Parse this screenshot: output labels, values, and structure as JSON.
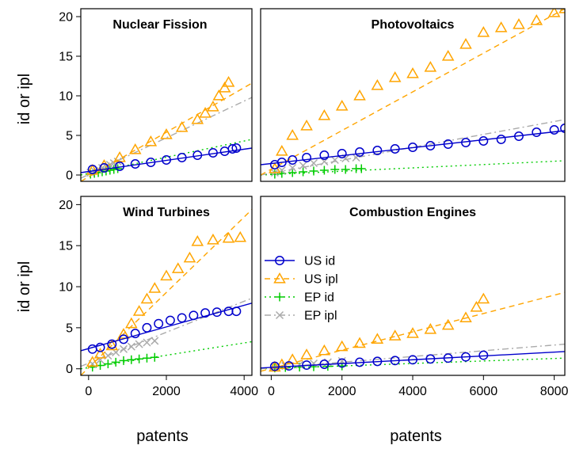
{
  "ylabel": "id or ipl",
  "xlabel": "patents",
  "colors": {
    "US id": "#0000cc",
    "US ipl": "#ffa500",
    "EP id": "#00cc00",
    "EP ipl": "#aaaaaa"
  },
  "legend": {
    "placement": "inside bottom-right panel, left-middle",
    "entries": [
      {
        "label": "US id",
        "color": "#0000cc",
        "marker": "circle",
        "line": "solid"
      },
      {
        "label": "US ipl",
        "color": "#ffa500",
        "marker": "triangle",
        "line": "dashed"
      },
      {
        "label": "EP id",
        "color": "#00cc00",
        "marker": "plus",
        "line": "dotted"
      },
      {
        "label": "EP ipl",
        "color": "#aaaaaa",
        "marker": "cross",
        "line": "dashdot"
      }
    ]
  },
  "chart_data": [
    {
      "type": "scatter",
      "title": "Nuclear Fission",
      "xlim": [
        -200,
        4200
      ],
      "ylim": [
        -0.8,
        21
      ],
      "xticks": [
        0,
        2000,
        4000
      ],
      "yticks": [
        0,
        5,
        10,
        15,
        20
      ],
      "xlabel": "patents",
      "ylabel": "id or ipl",
      "grid": false,
      "series": [
        {
          "name": "US id",
          "points": [
            [
              100,
              0.7
            ],
            [
              400,
              0.9
            ],
            [
              800,
              1.1
            ],
            [
              1200,
              1.4
            ],
            [
              1600,
              1.6
            ],
            [
              2000,
              1.9
            ],
            [
              2400,
              2.2
            ],
            [
              2800,
              2.5
            ],
            [
              3200,
              2.8
            ],
            [
              3500,
              3.0
            ],
            [
              3700,
              3.3
            ],
            [
              3800,
              3.4
            ]
          ],
          "fit": [
            [
              -200,
              0.3
            ],
            [
              4200,
              3.4
            ]
          ]
        },
        {
          "name": "US ipl",
          "points": [
            [
              100,
              0.6
            ],
            [
              400,
              1.2
            ],
            [
              800,
              2.2
            ],
            [
              1200,
              3.2
            ],
            [
              1600,
              4.2
            ],
            [
              2000,
              5.1
            ],
            [
              2400,
              6.0
            ],
            [
              2800,
              7.0
            ],
            [
              3000,
              7.8
            ],
            [
              3200,
              8.6
            ],
            [
              3350,
              10.0
            ],
            [
              3500,
              11.0
            ],
            [
              3600,
              11.7
            ]
          ],
          "fit": [
            [
              -200,
              -0.8
            ],
            [
              4200,
              11.6
            ]
          ]
        },
        {
          "name": "EP id",
          "points": [
            [
              50,
              0.1
            ],
            [
              150,
              0.2
            ],
            [
              250,
              0.3
            ],
            [
              350,
              0.4
            ],
            [
              450,
              0.5
            ],
            [
              550,
              0.6
            ],
            [
              650,
              0.7
            ],
            [
              750,
              0.8
            ]
          ],
          "fit": [
            [
              -200,
              0.0
            ],
            [
              4200,
              4.5
            ]
          ]
        },
        {
          "name": "EP ipl",
          "points": [
            [
              50,
              0.3
            ],
            [
              150,
              0.5
            ],
            [
              250,
              0.7
            ],
            [
              350,
              0.9
            ],
            [
              450,
              1.1
            ],
            [
              550,
              1.3
            ],
            [
              650,
              1.5
            ],
            [
              750,
              1.7
            ]
          ],
          "fit": [
            [
              -200,
              -0.4
            ],
            [
              4200,
              9.8
            ]
          ]
        }
      ]
    },
    {
      "type": "scatter",
      "title": "Photovoltaics",
      "xlim": [
        -300,
        8300
      ],
      "ylim": [
        -0.8,
        21
      ],
      "xticks": [
        0,
        2000,
        4000,
        6000,
        8000
      ],
      "yticks": [
        0,
        5,
        10,
        15,
        20
      ],
      "xlabel": "patents",
      "ylabel": "id or ipl",
      "grid": false,
      "series": [
        {
          "name": "US id",
          "points": [
            [
              100,
              1.3
            ],
            [
              300,
              1.6
            ],
            [
              600,
              1.9
            ],
            [
              1000,
              2.2
            ],
            [
              1500,
              2.5
            ],
            [
              2000,
              2.7
            ],
            [
              2500,
              2.9
            ],
            [
              3000,
              3.1
            ],
            [
              3500,
              3.3
            ],
            [
              4000,
              3.5
            ],
            [
              4500,
              3.7
            ],
            [
              5000,
              3.9
            ],
            [
              5500,
              4.1
            ],
            [
              6000,
              4.3
            ],
            [
              6500,
              4.5
            ],
            [
              7000,
              4.9
            ],
            [
              7500,
              5.4
            ],
            [
              8000,
              5.7
            ],
            [
              8300,
              5.9
            ]
          ],
          "fit": [
            [
              -300,
              1.3
            ],
            [
              8300,
              5.6
            ]
          ]
        },
        {
          "name": "US ipl",
          "points": [
            [
              100,
              0.8
            ],
            [
              300,
              3.0
            ],
            [
              600,
              5.0
            ],
            [
              1000,
              6.2
            ],
            [
              1500,
              7.5
            ],
            [
              2000,
              8.7
            ],
            [
              2500,
              10.0
            ],
            [
              3000,
              11.3
            ],
            [
              3500,
              12.3
            ],
            [
              4000,
              12.8
            ],
            [
              4500,
              13.6
            ],
            [
              5000,
              15.0
            ],
            [
              5500,
              16.5
            ],
            [
              6000,
              18.0
            ],
            [
              6500,
              18.6
            ],
            [
              7000,
              19.0
            ],
            [
              7500,
              19.5
            ],
            [
              8000,
              20.5
            ],
            [
              8300,
              21.0
            ]
          ],
          "fit": [
            [
              -300,
              0.0
            ],
            [
              8300,
              21.0
            ]
          ]
        },
        {
          "name": "EP id",
          "points": [
            [
              100,
              0.1
            ],
            [
              300,
              0.2
            ],
            [
              600,
              0.3
            ],
            [
              900,
              0.4
            ],
            [
              1200,
              0.5
            ],
            [
              1500,
              0.6
            ],
            [
              1800,
              0.7
            ],
            [
              2100,
              0.7
            ],
            [
              2400,
              0.8
            ],
            [
              2550,
              0.8
            ]
          ],
          "fit": [
            [
              -300,
              0.0
            ],
            [
              8300,
              1.8
            ]
          ]
        },
        {
          "name": "EP ipl",
          "points": [
            [
              100,
              0.3
            ],
            [
              300,
              0.6
            ],
            [
              600,
              0.9
            ],
            [
              900,
              1.2
            ],
            [
              1200,
              1.5
            ],
            [
              1500,
              1.7
            ],
            [
              1800,
              1.9
            ],
            [
              2100,
              2.1
            ],
            [
              2400,
              2.2
            ]
          ],
          "fit": [
            [
              -300,
              0.0
            ],
            [
              8300,
              7.0
            ]
          ]
        }
      ]
    },
    {
      "type": "scatter",
      "title": "Wind Turbines",
      "xlim": [
        -200,
        4200
      ],
      "ylim": [
        -0.8,
        21
      ],
      "xticks": [
        0,
        2000,
        4000
      ],
      "yticks": [
        0,
        5,
        10,
        15,
        20
      ],
      "xlabel": "patents",
      "ylabel": "id or ipl",
      "grid": false,
      "series": [
        {
          "name": "US id",
          "points": [
            [
              100,
              2.4
            ],
            [
              300,
              2.6
            ],
            [
              600,
              3.0
            ],
            [
              900,
              3.6
            ],
            [
              1200,
              4.3
            ],
            [
              1500,
              5.0
            ],
            [
              1800,
              5.5
            ],
            [
              2100,
              5.9
            ],
            [
              2400,
              6.2
            ],
            [
              2700,
              6.5
            ],
            [
              3000,
              6.8
            ],
            [
              3300,
              6.9
            ],
            [
              3600,
              7.0
            ],
            [
              3800,
              7.0
            ]
          ],
          "fit": [
            [
              -200,
              2.2
            ],
            [
              4200,
              8.0
            ]
          ]
        },
        {
          "name": "US ipl",
          "points": [
            [
              100,
              0.8
            ],
            [
              300,
              1.8
            ],
            [
              600,
              2.8
            ],
            [
              900,
              4.2
            ],
            [
              1100,
              5.5
            ],
            [
              1300,
              7.0
            ],
            [
              1500,
              8.5
            ],
            [
              1700,
              9.8
            ],
            [
              2000,
              11.3
            ],
            [
              2300,
              12.2
            ],
            [
              2600,
              13.5
            ],
            [
              2800,
              15.5
            ],
            [
              3200,
              15.7
            ],
            [
              3600,
              15.9
            ],
            [
              3900,
              16.0
            ]
          ],
          "fit": [
            [
              -200,
              -0.8
            ],
            [
              4200,
              19.4
            ]
          ]
        },
        {
          "name": "EP id",
          "points": [
            [
              100,
              0.2
            ],
            [
              300,
              0.4
            ],
            [
              500,
              0.6
            ],
            [
              700,
              0.8
            ],
            [
              900,
              1.0
            ],
            [
              1100,
              1.1
            ],
            [
              1300,
              1.2
            ],
            [
              1500,
              1.3
            ],
            [
              1700,
              1.4
            ]
          ],
          "fit": [
            [
              -200,
              0.0
            ],
            [
              4200,
              3.3
            ]
          ]
        },
        {
          "name": "EP ipl",
          "points": [
            [
              100,
              0.6
            ],
            [
              300,
              1.1
            ],
            [
              500,
              1.6
            ],
            [
              700,
              2.0
            ],
            [
              900,
              2.4
            ],
            [
              1100,
              2.7
            ],
            [
              1300,
              3.0
            ],
            [
              1500,
              3.2
            ],
            [
              1700,
              3.4
            ]
          ],
          "fit": [
            [
              -200,
              0.3
            ],
            [
              4200,
              8.6
            ]
          ]
        }
      ]
    },
    {
      "type": "scatter",
      "title": "Combustion Engines",
      "xlim": [
        -300,
        8300
      ],
      "ylim": [
        -0.8,
        21
      ],
      "xticks": [
        0,
        2000,
        4000,
        6000,
        8000
      ],
      "yticks": [
        0,
        5,
        10,
        15,
        20
      ],
      "xlabel": "patents",
      "ylabel": "id or ipl",
      "grid": false,
      "series": [
        {
          "name": "US id",
          "points": [
            [
              100,
              0.3
            ],
            [
              500,
              0.35
            ],
            [
              1000,
              0.45
            ],
            [
              1500,
              0.55
            ],
            [
              2000,
              0.7
            ],
            [
              2500,
              0.8
            ],
            [
              3000,
              0.9
            ],
            [
              3500,
              1.0
            ],
            [
              4000,
              1.1
            ],
            [
              4500,
              1.2
            ],
            [
              5000,
              1.3
            ],
            [
              5500,
              1.45
            ],
            [
              6000,
              1.65
            ]
          ],
          "fit": [
            [
              -300,
              0.1
            ],
            [
              8300,
              2.1
            ]
          ]
        },
        {
          "name": "US ipl",
          "points": [
            [
              100,
              0.2
            ],
            [
              300,
              0.5
            ],
            [
              600,
              1.1
            ],
            [
              1000,
              1.7
            ],
            [
              1500,
              2.2
            ],
            [
              2000,
              2.7
            ],
            [
              2500,
              3.1
            ],
            [
              3000,
              3.6
            ],
            [
              3500,
              4.0
            ],
            [
              4000,
              4.3
            ],
            [
              4500,
              4.8
            ],
            [
              5000,
              5.3
            ],
            [
              5500,
              6.2
            ],
            [
              5800,
              7.5
            ],
            [
              6000,
              8.5
            ]
          ],
          "fit": [
            [
              -300,
              -0.3
            ],
            [
              8300,
              9.3
            ]
          ]
        },
        {
          "name": "EP id",
          "points": [
            [
              100,
              0.1
            ],
            [
              400,
              0.15
            ],
            [
              800,
              0.2
            ],
            [
              1200,
              0.25
            ],
            [
              1600,
              0.3
            ],
            [
              2000,
              0.35
            ]
          ],
          "fit": [
            [
              -300,
              0.0
            ],
            [
              8300,
              1.3
            ]
          ]
        },
        {
          "name": "EP ipl",
          "points": [
            [
              100,
              0.2
            ],
            [
              400,
              0.35
            ],
            [
              800,
              0.5
            ],
            [
              1200,
              0.65
            ],
            [
              1600,
              0.8
            ],
            [
              2000,
              0.95
            ]
          ],
          "fit": [
            [
              -300,
              0.0
            ],
            [
              8300,
              3.0
            ]
          ]
        }
      ]
    }
  ]
}
